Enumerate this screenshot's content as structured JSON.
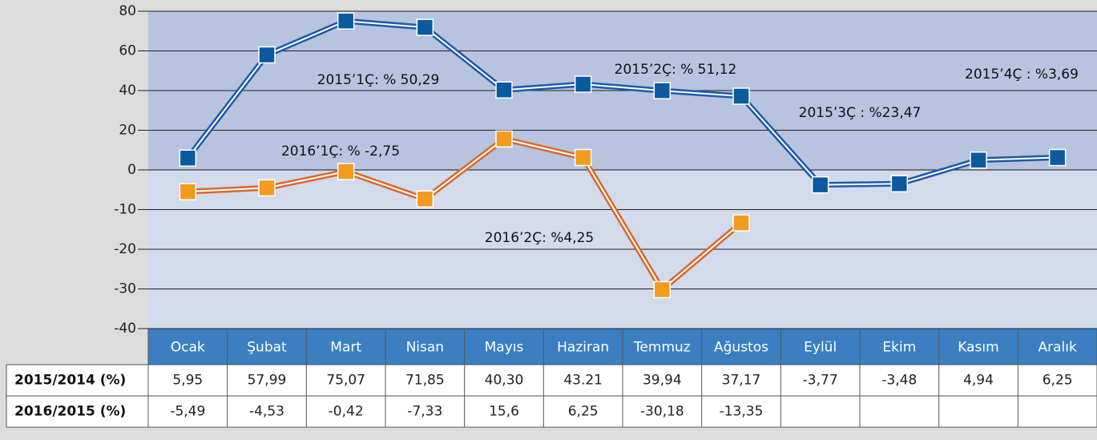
{
  "chart_data": {
    "type": "line",
    "categories": [
      "Ocak",
      "Şubat",
      "Mart",
      "Nisan",
      "Mayıs",
      "Haziran",
      "Temmuz",
      "Ağustos",
      "Eylül",
      "Ekim",
      "Kasım",
      "Aralık"
    ],
    "series": [
      {
        "name": "2015/2014 (%)",
        "color": "#1f5aa6",
        "marker_color": "#0a5aa0",
        "values": [
          5.95,
          57.99,
          75.07,
          71.85,
          40.3,
          43.21,
          39.94,
          37.17,
          -3.77,
          -3.48,
          4.94,
          6.25
        ],
        "value_labels": [
          "5,95",
          "57,99",
          "75,07",
          "71,85",
          "40,30",
          "43.21",
          "39,94",
          "37,17",
          "-3,77",
          "-3,48",
          "4,94",
          "6,25"
        ]
      },
      {
        "name": "2016/2015 (%)",
        "color": "#d9692a",
        "marker_color": "#f29b1e",
        "values": [
          -5.49,
          -4.53,
          -0.42,
          -7.33,
          15.6,
          6.25,
          -30.18,
          -13.35,
          null,
          null,
          null,
          null
        ],
        "value_labels": [
          "-5,49",
          "-4,53",
          "-0,42",
          "-7,33",
          "15,6",
          "6,25",
          "-30,18",
          "-13,35",
          null,
          null,
          null,
          null
        ]
      }
    ],
    "annotations": [
      "2015’1Ç: % 50,29",
      "2015’2Ç: % 51,12",
      "2015’3Ç : %23,47",
      "2015’4Ç : %3,69",
      "2016’1Ç: % -2,75",
      "2016’2Ç: %4,25"
    ],
    "ylim": [
      -40,
      80
    ],
    "yticks": [
      80,
      60,
      40,
      20,
      0,
      -10,
      -20,
      -30,
      -40
    ],
    "grid": true
  }
}
